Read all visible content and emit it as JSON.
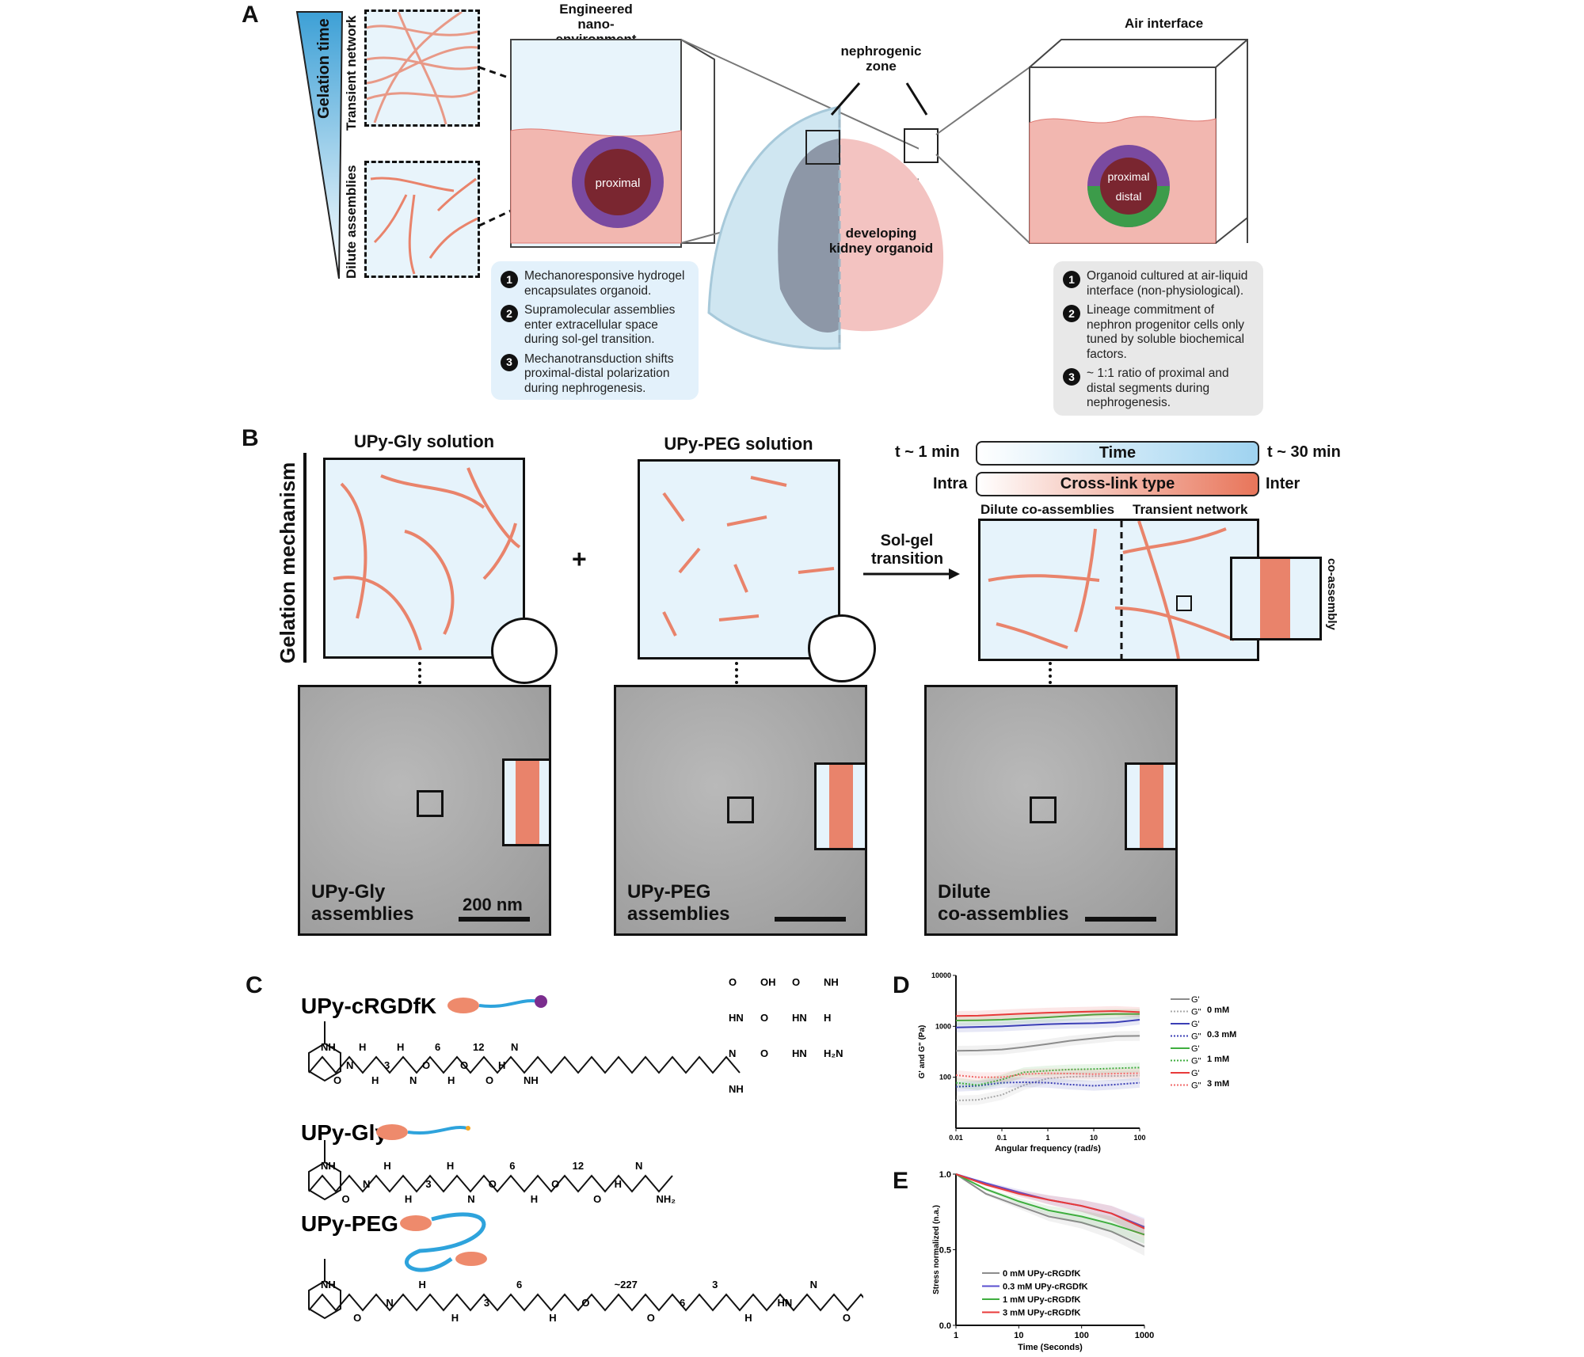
{
  "panels": {
    "a": "A",
    "b": "B",
    "c": "C",
    "d": "D",
    "e": "E"
  },
  "panelA": {
    "gelation_time": "Gelation time",
    "transient_network": "Transient network",
    "dilute_assemblies": "Dilute assemblies",
    "engineered_title": [
      "Engineered",
      "nano-environment"
    ],
    "proximal": "proximal",
    "distal": "distal",
    "nephrogenic_zone": [
      "nephrogenic",
      "zone"
    ],
    "organoid": [
      "developing",
      "kidney organoid"
    ],
    "air_interface": "Air interface",
    "left_notes": [
      {
        "n": "1",
        "text": "Mechanoresponsive hydrogel encapsulates organoid."
      },
      {
        "n": "2",
        "text": "Supramolecular assemblies enter extracellular space during sol-gel transition."
      },
      {
        "n": "3",
        "text": "Mechanotransduction shifts proximal-distal polarization during nephrogenesis."
      }
    ],
    "right_notes": [
      {
        "n": "1",
        "text": "Organoid cultured at air-liquid interface (non-physiological)."
      },
      {
        "n": "2",
        "text": "Lineage commitment of nephron progenitor cells only tuned by soluble biochemical factors."
      },
      {
        "n": "3",
        "text": "~ 1:1 ratio of proximal and distal segments during nephrogenesis."
      }
    ]
  },
  "panelB": {
    "gelation_mechanism": "Gelation mechanism",
    "upy_gly_solution": "UPy-Gly solution",
    "upy_peg_solution": "UPy-PEG solution",
    "plus": "+",
    "sol_gel": [
      "Sol-gel",
      "transition"
    ],
    "t_start": "t ~ 1 min",
    "t_end": "t ~ 30 min",
    "time": "Time",
    "intra": "Intra",
    "inter": "Inter",
    "crosslink": "Cross-link type",
    "dilute_co": "Dilute co-assemblies",
    "transient": "Transient network",
    "co_assembly": "co-assembly",
    "tem": [
      {
        "label": [
          "UPy-Gly",
          "assemblies"
        ],
        "scale": "200 nm"
      },
      {
        "label": [
          "UPy-PEG",
          "assemblies"
        ]
      },
      {
        "label": [
          "Dilute",
          "co-assemblies"
        ]
      }
    ],
    "colors": {
      "fiber": "#e9836b",
      "peg": "#2ea3dc",
      "bg": "#e6f3fb"
    }
  },
  "panelC": {
    "molecules": [
      {
        "name": "UPy-cRGDfK",
        "labels": [
          "NH",
          "O",
          "N",
          "H",
          "H",
          "3",
          "H",
          "N",
          "O",
          "6",
          "H",
          "O",
          "12",
          "O",
          "H",
          "N",
          "NH",
          "O",
          "OH",
          "O",
          "NH",
          "HN",
          "O",
          "HN",
          "H",
          "N",
          "O",
          "HN",
          "H₂N",
          "NH"
        ]
      },
      {
        "name": "UPy-Gly",
        "labels": [
          "NH",
          "O",
          "N",
          "H",
          "H",
          "3",
          "H",
          "N",
          "O",
          "6",
          "H",
          "O",
          "12",
          "O",
          "H",
          "N",
          "NH₂"
        ]
      },
      {
        "name": "UPy-PEG",
        "labels": [
          "NH",
          "O",
          "N",
          "H",
          "H",
          "3",
          "6",
          "H",
          "O",
          "~227",
          "O",
          "6",
          "3",
          "H",
          "HN",
          "N",
          "O"
        ]
      }
    ]
  },
  "chart_data": [
    {
      "type": "line",
      "panel": "D",
      "xlabel": "Angular frequency (rad/s)",
      "ylabel": "G' and G\" (Pa)",
      "xscale": "log",
      "yscale": "log",
      "xlim": [
        0.01,
        100
      ],
      "ylim": [
        10,
        10000
      ],
      "xticks": [
        "0.01",
        "0.1",
        "1",
        "10",
        "100"
      ],
      "yticks": [
        "100",
        "1000",
        "10000"
      ],
      "x": [
        0.01,
        0.03,
        0.1,
        0.3,
        1,
        3,
        10,
        30,
        100
      ],
      "legend_position": "right",
      "legend_groups": [
        "0 mM",
        "0.3 mM",
        "1 mM",
        "3 mM"
      ],
      "series": [
        {
          "name": "G'",
          "group": "0 mM",
          "style": "solid",
          "color": "#8c8c8c",
          "values": [
            330,
            335,
            350,
            390,
            450,
            520,
            580,
            640,
            650
          ]
        },
        {
          "name": "G\"",
          "group": "0 mM",
          "style": "dotted",
          "color": "#a8a8a8",
          "values": [
            35,
            36,
            45,
            70,
            95,
            102,
            105,
            106,
            108
          ]
        },
        {
          "name": "G'",
          "group": "0.3 mM",
          "style": "solid",
          "color": "#3b3fb5",
          "values": [
            950,
            970,
            1000,
            1050,
            1100,
            1130,
            1150,
            1200,
            1350
          ]
        },
        {
          "name": "G\"",
          "group": "0.3 mM",
          "style": "dotted",
          "color": "#3b3fb5",
          "values": [
            65,
            68,
            78,
            80,
            78,
            72,
            68,
            72,
            78
          ]
        },
        {
          "name": "G'",
          "group": "1 mM",
          "style": "solid",
          "color": "#3fae3f",
          "values": [
            1300,
            1310,
            1350,
            1420,
            1500,
            1600,
            1700,
            1750,
            1750
          ]
        },
        {
          "name": "G\"",
          "group": "1 mM",
          "style": "dotted",
          "color": "#3fae3f",
          "values": [
            78,
            70,
            90,
            125,
            135,
            142,
            145,
            150,
            155
          ]
        },
        {
          "name": "G'",
          "group": "3 mM",
          "style": "solid",
          "color": "#e83a3a",
          "values": [
            1600,
            1620,
            1700,
            1780,
            1850,
            1900,
            1950,
            2000,
            1900
          ]
        },
        {
          "name": "G\"",
          "group": "3 mM",
          "style": "dotted",
          "color": "#f06a6a",
          "values": [
            110,
            100,
            100,
            115,
            120,
            118,
            115,
            118,
            120
          ]
        }
      ]
    },
    {
      "type": "line",
      "panel": "E",
      "xlabel": "Time (Seconds)",
      "ylabel": "Stress normalized (n.a.)",
      "xscale": "log",
      "xlim": [
        1,
        1000
      ],
      "ylim": [
        0,
        1
      ],
      "xticks": [
        "1",
        "10",
        "100",
        "1000"
      ],
      "yticks": [
        "0.0",
        "0.5",
        "1.0"
      ],
      "x": [
        1,
        3,
        10,
        30,
        100,
        300,
        1000
      ],
      "legend_position": "bottom-left",
      "series": [
        {
          "name": "0 mM UPy-cRGDfK",
          "color": "#8c8c8c",
          "values": [
            1.0,
            0.87,
            0.79,
            0.72,
            0.68,
            0.62,
            0.52
          ]
        },
        {
          "name": "0.3 mM UPy-cRGDfK",
          "color": "#5a4fcf",
          "values": [
            1.0,
            0.94,
            0.88,
            0.83,
            0.79,
            0.74,
            0.65
          ]
        },
        {
          "name": "1 mM UPy-cRGDfK",
          "color": "#3fae3f",
          "values": [
            1.0,
            0.9,
            0.82,
            0.76,
            0.72,
            0.67,
            0.6
          ]
        },
        {
          "name": "3 mM UPy-cRGDfK",
          "color": "#e83a3a",
          "values": [
            1.0,
            0.93,
            0.87,
            0.83,
            0.79,
            0.74,
            0.64
          ]
        }
      ]
    }
  ]
}
